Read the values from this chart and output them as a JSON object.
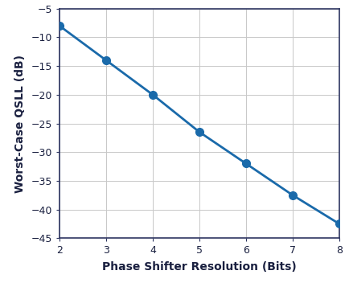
{
  "x": [
    2,
    3,
    4,
    5,
    6,
    7,
    8
  ],
  "y": [
    -8.0,
    -14.0,
    -20.0,
    -26.5,
    -32.0,
    -37.5,
    -42.5
  ],
  "line_color": "#1a6aaa",
  "marker_color": "#1a6aaa",
  "marker_size": 7,
  "line_width": 2.0,
  "xlabel": "Phase Shifter Resolution (Bits)",
  "ylabel": "Worst-Case QSLL (dB)",
  "xlim": [
    2,
    8
  ],
  "ylim": [
    -45,
    -5
  ],
  "xticks": [
    2,
    3,
    4,
    5,
    6,
    7,
    8
  ],
  "yticks": [
    -45,
    -40,
    -35,
    -30,
    -25,
    -20,
    -15,
    -10,
    -5
  ],
  "grid_color": "#c8c8c8",
  "background_color": "#ffffff",
  "spine_color": "#2d3561",
  "text_color": "#1a2040",
  "xlabel_fontsize": 10,
  "ylabel_fontsize": 10,
  "tick_fontsize": 9
}
